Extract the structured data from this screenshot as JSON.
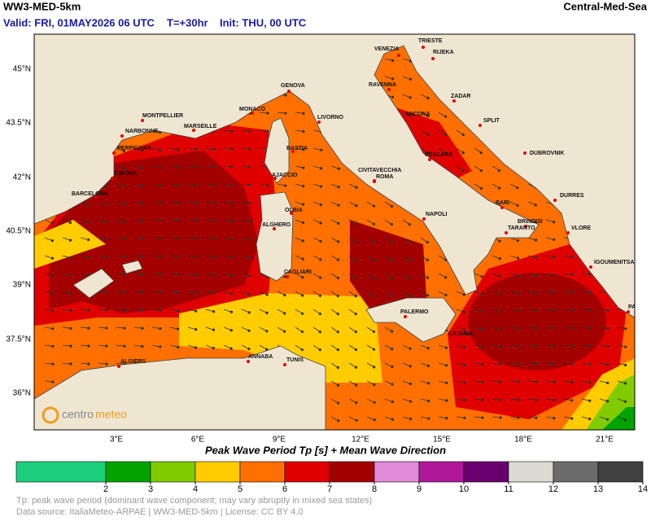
{
  "header": {
    "title": "WW3-MED-5km",
    "region": "Central-Med-Sea",
    "valid": "Valid: FRI, 01MAY2026 06 UTC",
    "step": "T=+30hr",
    "init": "Init: THU, 00 UTC"
  },
  "map": {
    "lat_labels": [
      "45°N",
      "43.5°N",
      "42°N",
      "40.5°N",
      "39°N",
      "37.5°N",
      "36°N"
    ],
    "lon_labels": [
      "3°E",
      "6°E",
      "9°E",
      "12°E",
      "15°E",
      "18°E",
      "21°E"
    ],
    "cities": [
      "TRIESTE",
      "VENEZIA",
      "RIJEKA",
      "RAVENNA",
      "ZADAR",
      "GENOVA",
      "ANCONA",
      "SPLIT",
      "MONTPELLIER",
      "MONACO",
      "LIVORNO",
      "NARBONNE",
      "MARSEILLE",
      "DUBROVNIK",
      "PERPIGNAN",
      "BASTIA",
      "PESCARA",
      "GIRONA",
      "AJACCIO",
      "CIVITAVECCHIA",
      "ROMA",
      "BARCELONA",
      "DURRES",
      "BARI",
      "OLBIA",
      "NAPOLI",
      "ALGHERO",
      "BRINDISI",
      "TARANTO",
      "VLORE",
      "IGOUMENITSA",
      "CAGLIARI",
      "PALERMO",
      "PATRAS",
      "CATANIA",
      "ALGIERS",
      "ANNABA",
      "TUNIS"
    ],
    "logo": [
      "centro",
      "meteo"
    ]
  },
  "colorbar": {
    "title": "Peak Wave Period Tp [s]  +  Mean Wave Direction",
    "ticks": [
      2,
      3,
      4,
      5,
      6,
      7,
      8,
      9,
      10,
      11,
      12,
      13,
      14
    ],
    "colors": [
      "#1ccf7c",
      "#00a300",
      "#80cc00",
      "#ffcc00",
      "#ff7000",
      "#e00000",
      "#a30000",
      "#e08ad8",
      "#b0189a",
      "#6a0070",
      "#dddad3",
      "#6b6b6b",
      "#404040"
    ]
  },
  "footer": {
    "note": "Tp: peak wave period (dominant wave component; may vary abruptly in mixed sea states)",
    "source": "Data source: ItaliaMeteo-ARPAE | WW3-MED-5km | License: CC BY 4.0"
  }
}
